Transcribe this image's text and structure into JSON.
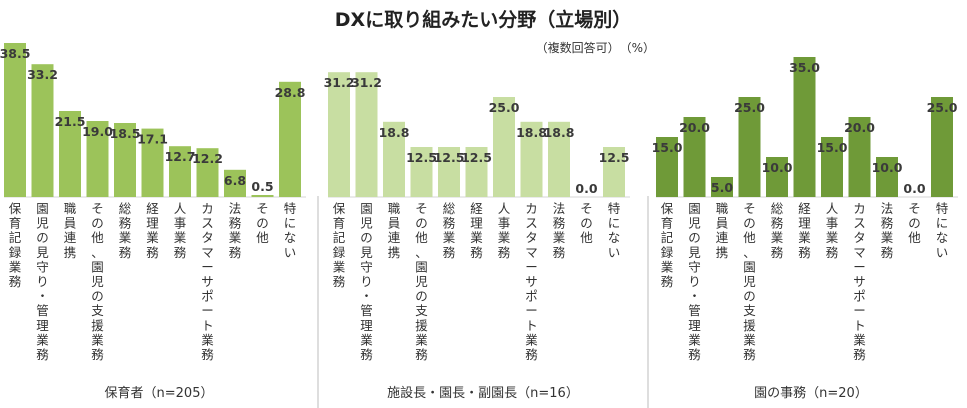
{
  "chart_data": {
    "type": "bar",
    "title": "DXに取り組みたい分野（立場別）",
    "note": "（複数回答可）　（%）",
    "ylim": [
      0,
      40
    ],
    "grid": false,
    "legend": "none",
    "categories": [
      "保育記録業務",
      "園児の見守り・管理業務",
      "職員連携",
      "その他、園児の支援業務",
      "総務業務",
      "経理業務",
      "人事業務",
      "カスタマーサポート業務",
      "法務業務",
      "その他",
      "特にない"
    ],
    "groups": [
      {
        "name": "保育者（n=205）",
        "color": "#9cc35a",
        "values": [
          38.5,
          33.2,
          21.5,
          19.0,
          18.5,
          17.1,
          12.7,
          12.2,
          6.8,
          0.5,
          28.8
        ]
      },
      {
        "name": "施設長・園長・副園長（n=16）",
        "color": "#c8dea2",
        "values": [
          31.2,
          31.2,
          18.8,
          12.5,
          12.5,
          12.5,
          25.0,
          18.8,
          18.8,
          0.0,
          12.5
        ]
      },
      {
        "name": "園の事務（n=20）",
        "color": "#6f9a38",
        "values": [
          15.0,
          20.0,
          5.0,
          25.0,
          10.0,
          35.0,
          15.0,
          20.0,
          10.0,
          0.0,
          25.0
        ]
      }
    ]
  }
}
